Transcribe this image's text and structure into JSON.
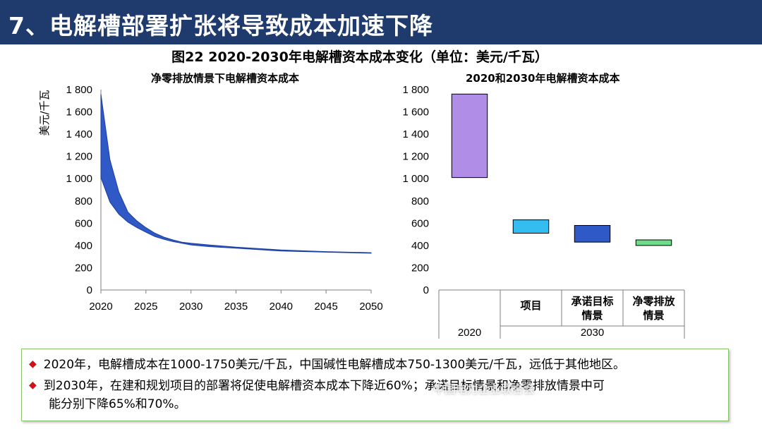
{
  "header": {
    "title": "7、电解槽部署扩张将导致成本加速下降"
  },
  "figure": {
    "title": "图22 2020-2030年电解槽资本成本变化（单位：美元/千瓦）"
  },
  "chart_data": [
    {
      "type": "area",
      "title": "净零排放情景下电解槽资本成本",
      "ylabel": "美元/千瓦",
      "xlabel": "",
      "xlim": [
        2020,
        2050
      ],
      "ylim": [
        0,
        1800
      ],
      "xticks": [
        "2020",
        "2025",
        "2030",
        "2035",
        "2040",
        "2045",
        "2050"
      ],
      "yticks": [
        "0",
        "200",
        "400",
        "600",
        "800",
        "1 000",
        "1 200",
        "1 400",
        "1 600",
        "1 800"
      ],
      "x": [
        2020,
        2021,
        2022,
        2023,
        2024,
        2025,
        2026,
        2027,
        2028,
        2029,
        2030,
        2032,
        2035,
        2040,
        2045,
        2050
      ],
      "series": [
        {
          "name": "upper",
          "values": [
            1760,
            1170,
            880,
            700,
            620,
            560,
            510,
            475,
            450,
            430,
            420,
            405,
            385,
            360,
            345,
            335
          ]
        },
        {
          "name": "lower",
          "values": [
            1010,
            790,
            680,
            610,
            560,
            520,
            480,
            455,
            435,
            420,
            405,
            390,
            375,
            350,
            340,
            330
          ]
        }
      ],
      "color": "#2e59c6",
      "grid": false
    },
    {
      "type": "bar",
      "title": "2020和2030年电解槽资本成本",
      "ylim": [
        0,
        1800
      ],
      "yticks": [
        "0",
        "200",
        "400",
        "600",
        "800",
        "1 000",
        "1 200",
        "1 400",
        "1 600",
        "1 800"
      ],
      "categories": [
        "",
        "项目",
        "承诺目标情景",
        "净零排放情景"
      ],
      "category_lines": [
        [
          ""
        ],
        [
          "项目"
        ],
        [
          "承诺目标",
          "情景"
        ],
        [
          "净零排放",
          "情景"
        ]
      ],
      "groups": [
        "2020",
        "2030"
      ],
      "ranges": [
        {
          "low": 1010,
          "high": 1760,
          "color": "#b08ee8"
        },
        {
          "low": 510,
          "high": 630,
          "color": "#33bdf0"
        },
        {
          "low": 430,
          "high": 580,
          "color": "#2e59c6"
        },
        {
          "low": 400,
          "high": 450,
          "color": "#6fdc8c"
        }
      ],
      "grid": false
    }
  ],
  "notes": [
    "2020年，电解槽成本在1000-1750美元/千瓦，中国碱性电解槽成本750-1300美元/千瓦，远低于其他地区。",
    "到2030年，在建和规划项目的部署将促使电解槽资本成本下降近60%；承诺目标情景和净零排放情景中可",
    "能分别下降65%和70%。"
  ],
  "watermark": "中国电力企业联合会"
}
